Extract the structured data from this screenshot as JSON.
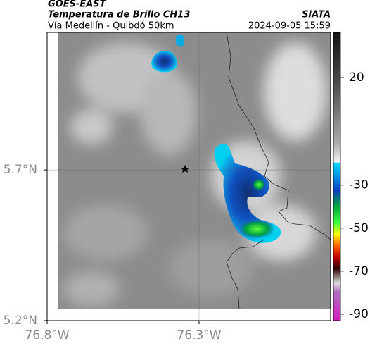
{
  "header": {
    "source": "GOES-EAST",
    "title": "Temperatura de Brillo CH13",
    "subtitle": "Vía Medellín - Quibdó 50km",
    "agency": "SIATA",
    "datetime": "2024-09-05 15:59"
  },
  "map": {
    "lat_lim": [
      5.2,
      6.156
    ],
    "lon_lim": [
      -76.8,
      -75.867
    ],
    "lat_ticks": [
      {
        "value": 5.2,
        "label": "5.2°N"
      },
      {
        "value": 5.7,
        "label": "5.7°N"
      }
    ],
    "lon_ticks": [
      {
        "value": -76.8,
        "label": "76.8°W"
      },
      {
        "value": -76.3,
        "label": "76.3°W"
      }
    ]
  },
  "colorbar": {
    "lim": [
      -93,
      41
    ],
    "ticks": [
      20,
      -30,
      -50,
      -70,
      -90
    ]
  }
}
